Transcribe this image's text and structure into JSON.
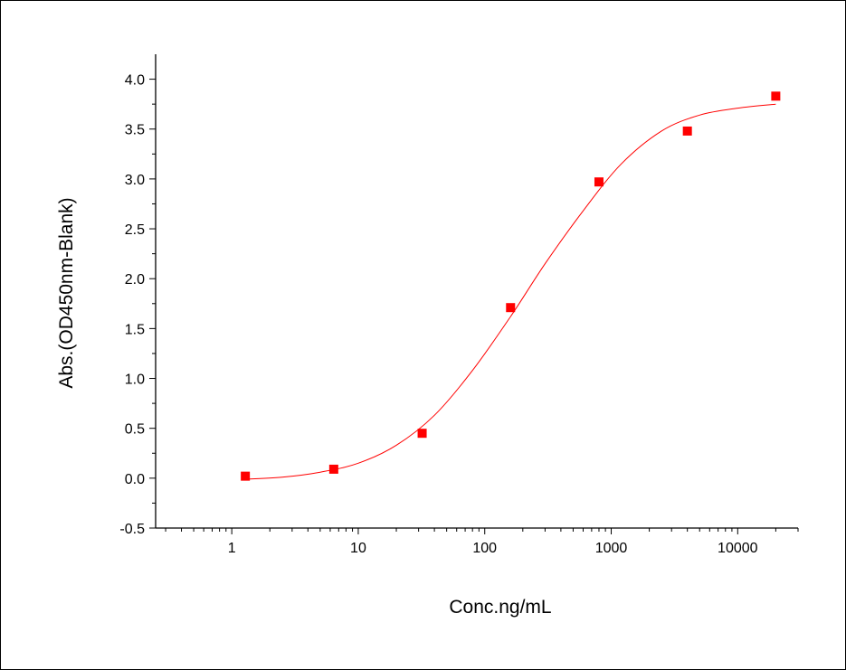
{
  "chart_data": {
    "type": "scatter",
    "title": "",
    "xlabel": "Conc.ng/mL",
    "ylabel": "Abs.(OD450nm-Blank)",
    "x_scale": "log",
    "xlim": [
      0.25,
      30000
    ],
    "ylim": [
      -0.5,
      4.25
    ],
    "x_ticks": [
      1,
      10,
      100,
      1000,
      10000
    ],
    "x_tick_labels": [
      "1",
      "10",
      "100",
      "1000",
      "10000"
    ],
    "y_ticks": [
      -0.5,
      0.0,
      0.5,
      1.0,
      1.5,
      2.0,
      2.5,
      3.0,
      3.5,
      4.0
    ],
    "y_tick_labels": [
      "-0.5",
      "0.0",
      "0.5",
      "1.0",
      "1.5",
      "2.0",
      "2.5",
      "3.0",
      "3.5",
      "4.0"
    ],
    "grid": false,
    "series": [
      {
        "type": "scatter",
        "color": "#ff0000",
        "marker": "square",
        "x": [
          1.28,
          6.4,
          32,
          160,
          800,
          4000,
          20000
        ],
        "y": [
          0.02,
          0.09,
          0.45,
          1.71,
          2.97,
          3.48,
          3.83
        ]
      },
      {
        "type": "line",
        "color": "#ff0000",
        "x": [
          1.28,
          2.5,
          5,
          10,
          20,
          40,
          80,
          160,
          300,
          600,
          1200,
          2500,
          5000,
          10000,
          20000
        ],
        "y": [
          -0.01,
          0.01,
          0.06,
          0.15,
          0.33,
          0.63,
          1.08,
          1.62,
          2.15,
          2.68,
          3.15,
          3.48,
          3.64,
          3.71,
          3.75
        ]
      }
    ]
  }
}
